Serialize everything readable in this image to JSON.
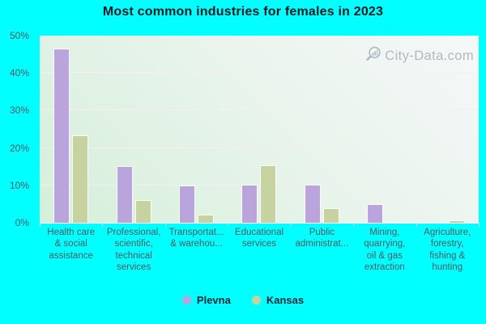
{
  "title": "Most common industries for females in 2023",
  "watermark": {
    "text": "City-Data.com"
  },
  "colors": {
    "page_background": "#00ffff",
    "title_text": "#15181f",
    "axis_text": "#4f585f",
    "legend_text": "#1c2430",
    "plevna_bar": "#b9a4dc",
    "kansas_bar": "#c6d2a0",
    "plot_gradient_top": "#f5f8f9",
    "plot_gradient_bottom": "#d5efda",
    "gridline": "#faecf6"
  },
  "chart_data": {
    "type": "bar",
    "title": "Most common industries for females in 2023",
    "categories": [
      "Health care & social assistance",
      "Professional, scientific, technical services",
      "Transportat... & warehou...",
      "Educational services",
      "Public administrat...",
      "Mining, quarrying, oil & gas extraction",
      "Agriculture, forestry, fishing & hunting"
    ],
    "category_display_lines": [
      [
        "Health care",
        "& social",
        "assistance"
      ],
      [
        "Professional,",
        "scientific,",
        "technical",
        "services"
      ],
      [
        "Transportat...",
        "& warehou..."
      ],
      [
        "Educational",
        "services"
      ],
      [
        "Public",
        "administrat..."
      ],
      [
        "Mining,",
        "quarrying,",
        "oil & gas",
        "extraction"
      ],
      [
        "Agriculture,",
        "forestry,",
        "fishing &",
        "hunting"
      ]
    ],
    "series": [
      {
        "name": "Plevna",
        "color": "#b9a4dc",
        "values": [
          46.6,
          15.2,
          10.0,
          10.1,
          10.2,
          4.9,
          0
        ]
      },
      {
        "name": "Kansas",
        "color": "#c6d2a0",
        "values": [
          23.4,
          6.0,
          2.1,
          15.3,
          4.0,
          0.3,
          0.7
        ]
      }
    ],
    "xlabel": "",
    "ylabel": "",
    "ylim": [
      0,
      50
    ],
    "ytick_step": 10,
    "ytick_labels": [
      "0%",
      "10%",
      "20%",
      "30%",
      "40%",
      "50%"
    ],
    "grid": true,
    "legend_position": "bottom"
  },
  "legend": {
    "items": [
      {
        "label": "Plevna",
        "color": "#b9a4dc"
      },
      {
        "label": "Kansas",
        "color": "#c6d2a0"
      }
    ]
  }
}
